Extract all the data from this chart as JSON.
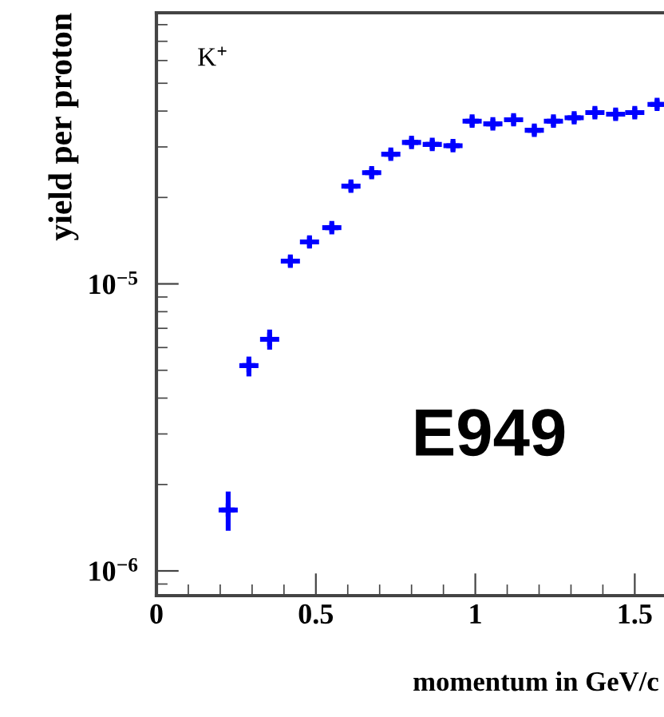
{
  "chart_data": {
    "type": "scatter",
    "xlabel": "momentum in GeV/c",
    "ylabel": "yield per proton",
    "annotations": [
      "K$^{+}$",
      "E949"
    ],
    "log": "y",
    "marker": "cross",
    "xlim": [
      0,
      1.6
    ],
    "xticks": [
      0,
      0.5,
      1,
      1.5
    ],
    "ylim": [
      8.2e-07,
      8.8e-05
    ],
    "yticks": [
      {
        "value": 1e-06,
        "label": "10$^{−6}$"
      },
      {
        "value": 1e-05,
        "label": "10$^{−5}$"
      }
    ],
    "series": [
      {
        "color": "#0000ff",
        "x": [
          0.225,
          0.29,
          0.355,
          0.42,
          0.48,
          0.55,
          0.61,
          0.675,
          0.735,
          0.8,
          0.865,
          0.93,
          0.99,
          1.055,
          1.12,
          1.185,
          1.245,
          1.31,
          1.375,
          1.44,
          1.5,
          1.57
        ],
        "values": [
          1.63e-06,
          5.19e-06,
          6.41e-06,
          1.2e-05,
          1.4e-05,
          1.57e-05,
          2.19e-05,
          2.44e-05,
          2.83e-05,
          3.11e-05,
          3.06e-05,
          3.03e-05,
          3.69e-05,
          3.61e-05,
          3.73e-05,
          3.43e-05,
          3.69e-05,
          3.79e-05,
          3.95e-05,
          3.9e-05,
          3.95e-05,
          4.22e-05
        ],
        "errors": [
          [
            1.38e-06,
            1.89e-06
          ],
          [
            4.76e-06,
            5.58e-06
          ],
          [
            5.9e-06,
            6.93e-06
          ],
          5e-07,
          6e-07,
          6e-07,
          9e-07,
          1e-06,
          1.1e-06,
          1.2e-06,
          1.2e-06,
          1.2e-06,
          1.5e-06,
          1.4e-06,
          1.5e-06,
          1.4e-06,
          1.5e-06,
          1.5e-06,
          1.6e-06,
          1.6e-06,
          1.6e-06,
          1.7e-06
        ],
        "xerrors": [
          0.03,
          0.03,
          0.03,
          0.03,
          0.03,
          0.03,
          0.03,
          0.03,
          0.03,
          0.03,
          0.03,
          0.03,
          0.03,
          0.03,
          0.03,
          0.03,
          0.03,
          0.03,
          0.03,
          0.03,
          0.03,
          0.03
        ]
      }
    ]
  }
}
